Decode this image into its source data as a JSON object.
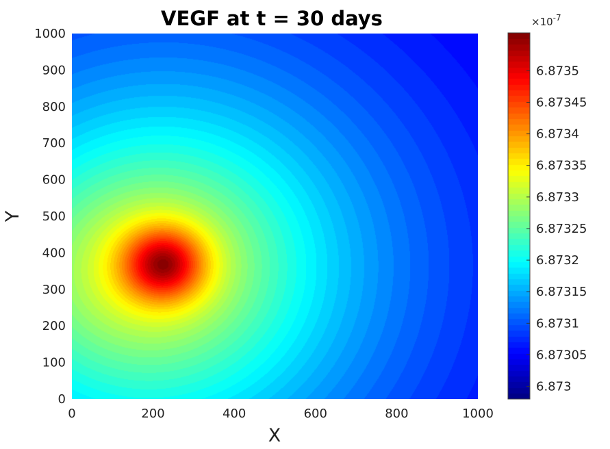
{
  "chart_data": {
    "type": "heatmap",
    "title": "VEGF at t = 30 days",
    "xlabel": "X",
    "ylabel": "Y",
    "xlim": [
      0,
      1000
    ],
    "ylim": [
      0,
      1000
    ],
    "xticks": [
      0,
      200,
      400,
      600,
      800,
      1000
    ],
    "yticks": [
      0,
      100,
      200,
      300,
      400,
      500,
      600,
      700,
      800,
      900,
      1000
    ],
    "colormap": "jet",
    "colorbar": {
      "exponent_label": "×10",
      "exponent_power": "-7",
      "range": [
        6.87298,
        6.87356
      ],
      "tick_values": [
        6.873,
        6.87305,
        6.8731,
        6.87315,
        6.8732,
        6.87325,
        6.8733,
        6.87335,
        6.8734,
        6.87345,
        6.8735
      ],
      "tick_labels": [
        "6.873",
        "6.87305",
        "6.8731",
        "6.87315",
        "6.8732",
        "6.87325",
        "6.8733",
        "6.87335",
        "6.8734",
        "6.87345",
        "6.8735"
      ]
    },
    "field": {
      "peak_location": [
        225,
        370
      ],
      "peak_value": 6.87356,
      "min_location": [
        1000,
        1000
      ],
      "min_value": 6.87298
    }
  }
}
